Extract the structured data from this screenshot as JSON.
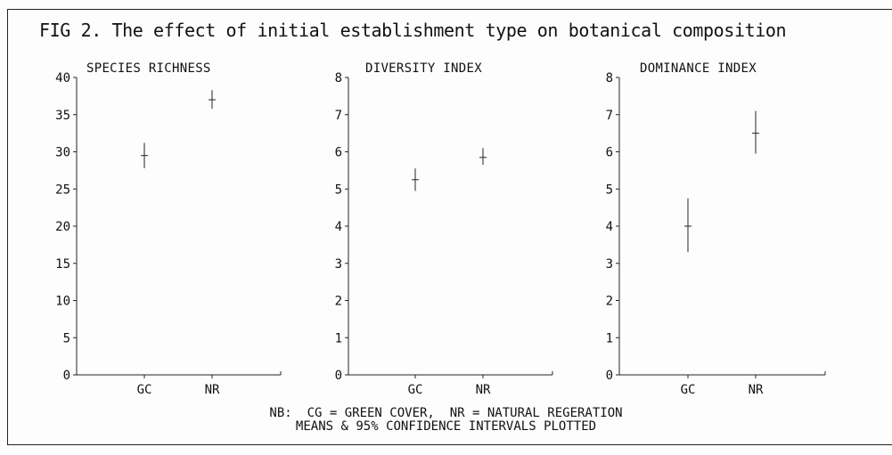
{
  "figure": {
    "title": "FIG 2. The effect of initial establishment type on botanical composition",
    "note_line1": "NB:  CG = GREEN COVER,  NR = NATURAL REGERATION",
    "note_line2": "MEANS & 95% CONFIDENCE INTERVALS PLOTTED"
  },
  "chart_data": [
    {
      "type": "scatter",
      "title": "SPECIES RICHNESS",
      "categories": [
        "GC",
        "NR"
      ],
      "ylim": [
        0,
        40
      ],
      "yticks": [
        0,
        5,
        10,
        15,
        20,
        25,
        30,
        35,
        40
      ],
      "points": [
        {
          "x": "GC",
          "mean": 29.5,
          "ci_low": 27.8,
          "ci_high": 31.2
        },
        {
          "x": "NR",
          "mean": 37.0,
          "ci_low": 35.8,
          "ci_high": 38.3
        }
      ],
      "grid": false,
      "error_bars": "95% confidence intervals"
    },
    {
      "type": "scatter",
      "title": "DIVERSITY INDEX",
      "categories": [
        "GC",
        "NR"
      ],
      "ylim": [
        0,
        8
      ],
      "yticks": [
        0,
        1,
        2,
        3,
        4,
        5,
        6,
        7,
        8
      ],
      "points": [
        {
          "x": "GC",
          "mean": 5.25,
          "ci_low": 4.95,
          "ci_high": 5.55
        },
        {
          "x": "NR",
          "mean": 5.85,
          "ci_low": 5.65,
          "ci_high": 6.1
        }
      ],
      "grid": false,
      "error_bars": "95% confidence intervals"
    },
    {
      "type": "scatter",
      "title": "DOMINANCE INDEX",
      "categories": [
        "GC",
        "NR"
      ],
      "ylim": [
        0,
        8
      ],
      "yticks": [
        0,
        1,
        2,
        3,
        4,
        5,
        6,
        7,
        8
      ],
      "points": [
        {
          "x": "GC",
          "mean": 4.0,
          "ci_low": 3.3,
          "ci_high": 4.75
        },
        {
          "x": "NR",
          "mean": 6.5,
          "ci_low": 5.95,
          "ci_high": 7.1
        }
      ],
      "grid": false,
      "error_bars": "95% confidence intervals"
    }
  ]
}
